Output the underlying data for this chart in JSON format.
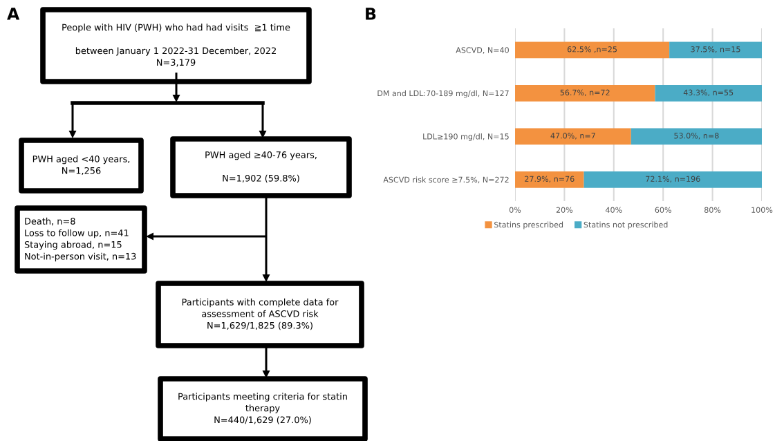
{
  "chart_data": [
    {
      "type": "other",
      "title": "A",
      "annotations": [
        "People with HIV (PWH) who had had visits  ≧1 time\n\nbetween January 1 2022-31 December, 2022\nN=3,179",
        "PWH aged <40 years,\nN=1,256",
        "PWH aged ≥40-76 years,\n\nN=1,902 (59.8%)",
        "Death, n=8\nLoss to follow up, n=41\nStaying abroad, n=15\nNot-in-person visit, n=13",
        "Participants with complete data for\nassessment of ASCVD risk\nN=1,629/1,825 (89.3%)",
        "Participants meeting criteria for statin\ntherapy\nN=440/1,629 (27.0%)"
      ]
    },
    {
      "type": "bar",
      "title": "B",
      "orientation": "horizontal",
      "stacked": true,
      "categories": [
        "ASCVD, N=40",
        "DM and LDL:70-189 mg/dl, N=127",
        "LDL≥190 mg/dl, N=15",
        "ASCVD risk score ≥7.5%, N=272"
      ],
      "series": [
        {
          "name": "Statins prescribed",
          "color": "#f39240",
          "values": [
            62.5,
            56.7,
            47.0,
            27.9
          ],
          "value_labels": [
            "62.5% ,n=25",
            "56.7%, n=72",
            "47.0%, n=7",
            "27.9%, n=76"
          ]
        },
        {
          "name": "Statins not prescribed",
          "color": "#4bacc6",
          "values": [
            37.5,
            43.3,
            53.0,
            72.1
          ],
          "value_labels": [
            "37.5%, n=15",
            "43.3%, n=55",
            "53.0%, n=8",
            "72.1%, n=196"
          ]
        }
      ],
      "xlim": [
        0,
        100
      ],
      "xticks": [
        {
          "value": 0,
          "label": "0%"
        },
        {
          "value": 20,
          "label": "20%"
        },
        {
          "value": 40,
          "label": "40%"
        },
        {
          "value": 60,
          "label": "60%"
        },
        {
          "value": 80,
          "label": "80%"
        },
        {
          "value": 100,
          "label": "100%"
        }
      ],
      "grid": "x",
      "legend": "bottom"
    }
  ]
}
